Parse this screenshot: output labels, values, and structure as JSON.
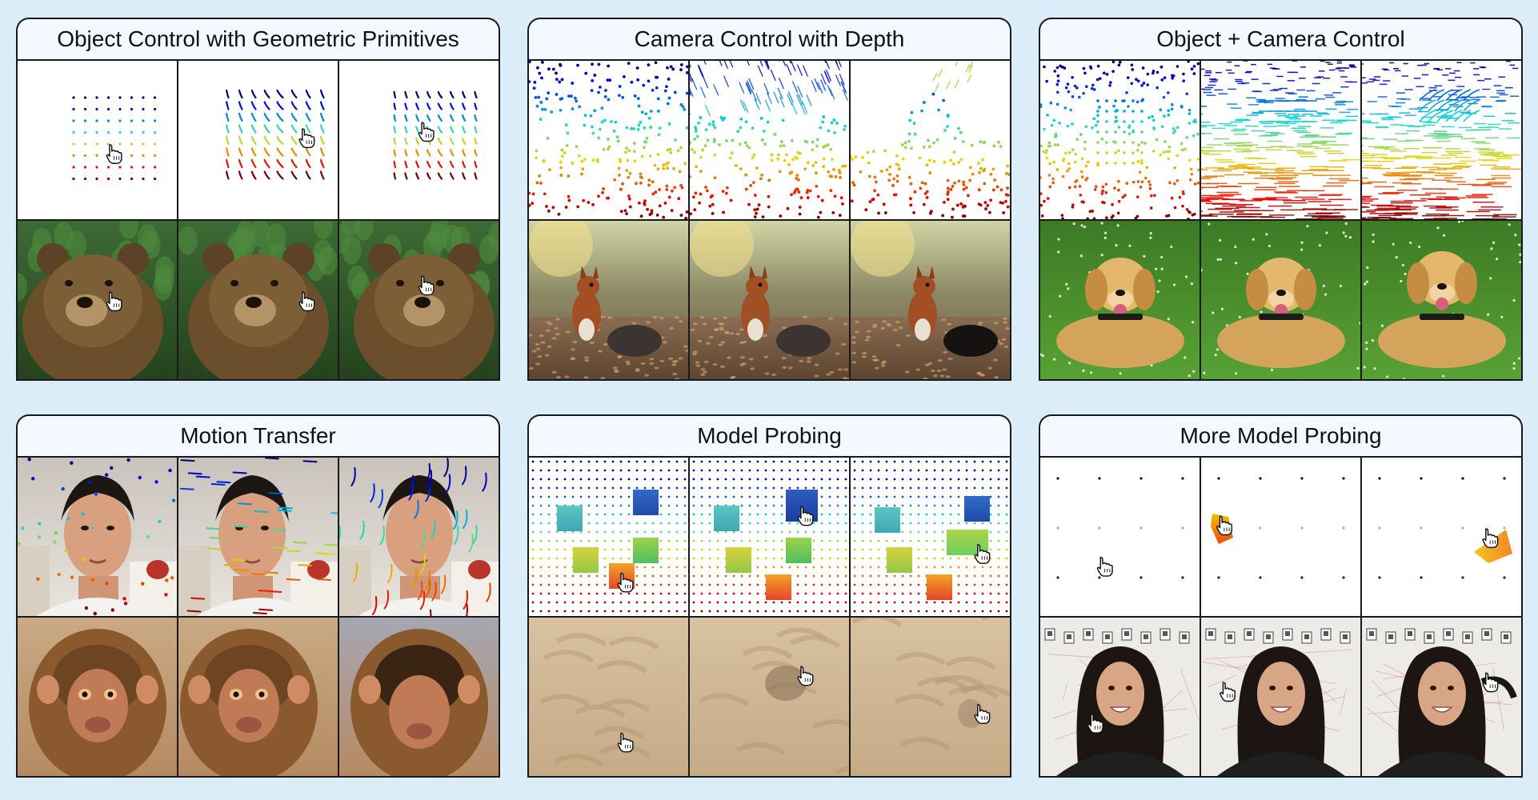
{
  "figure": {
    "panels": [
      {
        "id": "p1",
        "title": "Object Control with Geometric Primitives",
        "viz": "grid-drag",
        "photo": "bear",
        "bg": "#ffffff",
        "hand_positions": [
          [
            0.6,
            0.58
          ],
          [
            0.8,
            0.48
          ],
          [
            0.54,
            0.44
          ]
        ]
      },
      {
        "id": "p2",
        "title": "Camera Control with Depth",
        "viz": "scatter-depth",
        "photo": "squirrel",
        "bg": "#ffffff",
        "hand_positions": []
      },
      {
        "id": "p3",
        "title": "Object + Camera Control",
        "viz": "scatter-flow",
        "photo": "dog",
        "bg": "#ffffff",
        "hand_positions": []
      },
      {
        "id": "p4",
        "title": "Motion Transfer",
        "viz": "face-tracks",
        "photo": "monkey",
        "bg": "#ffffff",
        "hand_positions": []
      },
      {
        "id": "p5",
        "title": "Model Probing",
        "viz": "dot-squares",
        "photo": "sand",
        "bg": "#ffffff",
        "hand_positions": [
          [
            0.6,
            0.78
          ],
          [
            0.72,
            0.36
          ],
          [
            0.82,
            0.6
          ]
        ]
      },
      {
        "id": "p6",
        "title": "More Model Probing",
        "viz": "sparse-blob",
        "photo": "woman",
        "bg": "#ffffff",
        "hand_positions": [
          [
            0.4,
            0.68
          ],
          [
            0.15,
            0.46
          ],
          [
            0.15,
            0.46
          ]
        ]
      }
    ],
    "icons": {
      "cursor": "hand-cursor-icon"
    },
    "colors": {
      "background": "#dcedfa",
      "border": "#1a1a1a",
      "tab": "#f3f9fe"
    }
  }
}
